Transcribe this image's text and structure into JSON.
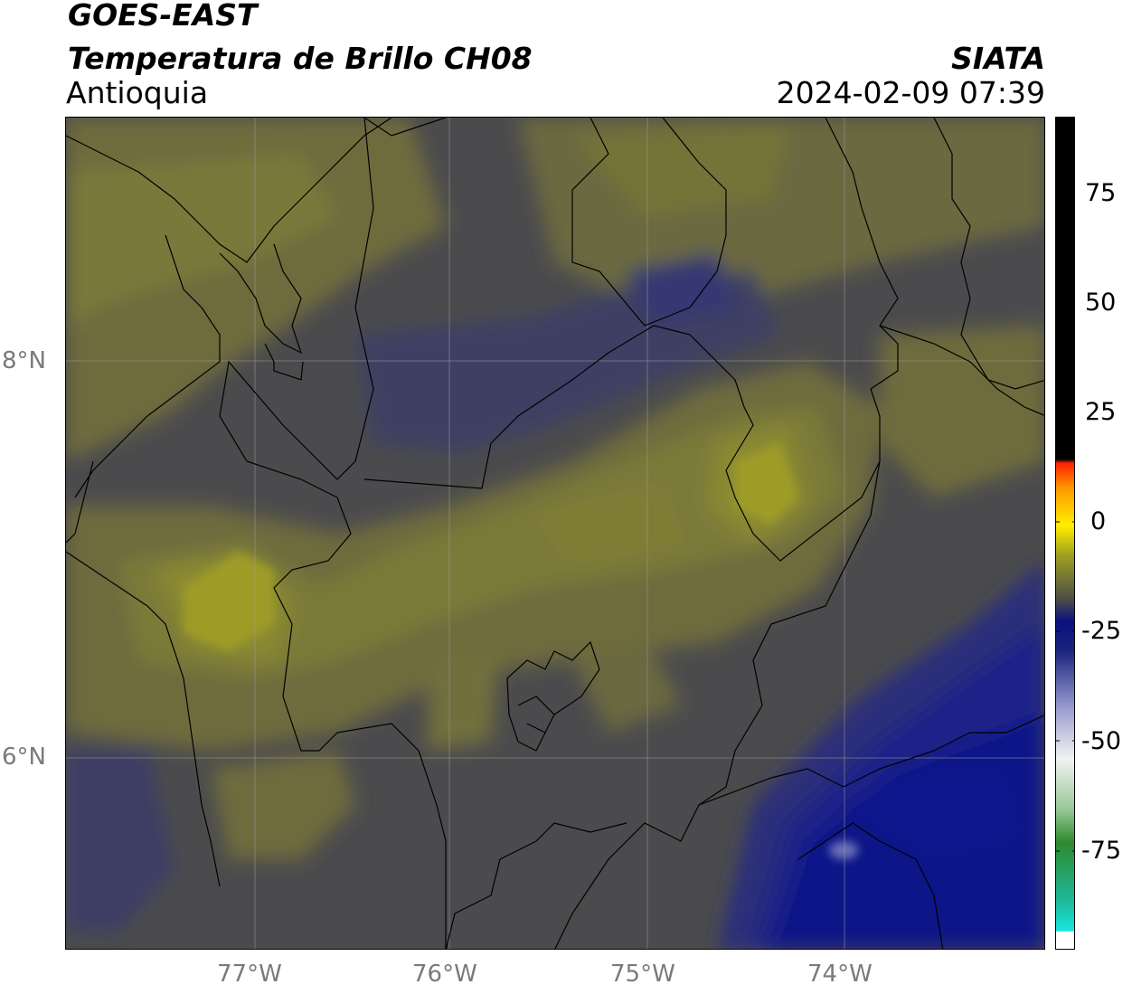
{
  "header": {
    "satellite": "GOES-EAST",
    "product": "Temperatura de Brillo CH08",
    "region": "Antioquia",
    "agency": "SIATA",
    "datetime": "2024-02-09 07:39"
  },
  "axes": {
    "lat_labels": [
      "8°N",
      "6°N"
    ],
    "lon_labels": [
      "77°W",
      "76°W",
      "75°W",
      "74°W"
    ],
    "grid": true
  },
  "colorbar": {
    "ticks": [
      "75",
      "50",
      "25",
      "0",
      "-25",
      "-50",
      "-75"
    ],
    "colormap_colors": [
      "#ffffff",
      "#17e6dd",
      "#2d8a2d",
      "#f2f2f2",
      "#1a237e",
      "#4a4a4a",
      "#a0a020",
      "#ffee00",
      "#ff9900",
      "#ff0000",
      "#000000"
    ]
  },
  "map_colors": {
    "dark_gray": "#4b4b4d",
    "olive": "#6e6c3c",
    "olive_light": "#868634",
    "yellow_olive": "#9e9c28",
    "navy": "#2c2f7a",
    "deep_navy": "#0e1588"
  }
}
